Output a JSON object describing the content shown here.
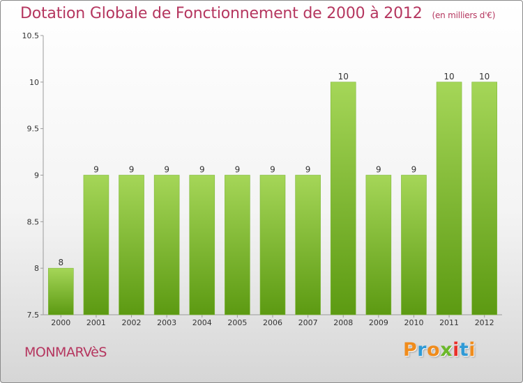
{
  "title": "Dotation Globale de Fonctionnement de 2000 à 2012",
  "unit": "(en milliers d'€)",
  "commune": "MONMARVèS",
  "logo": {
    "letters": [
      "P",
      "r",
      "o",
      "x",
      "i",
      "t",
      "i"
    ],
    "colors": [
      "#f08c1c",
      "#2f9ad6",
      "#f08c1c",
      "#6bb82a",
      "#e9302a",
      "#2f9ad6",
      "#f08c1c"
    ]
  },
  "colors": {
    "bar_top": "#a5d658",
    "bar_bottom": "#5c9a12",
    "title": "#b5365f"
  },
  "chart_data": {
    "type": "bar",
    "title": "Dotation Globale de Fonctionnement de 2000 à 2012",
    "xlabel": "",
    "ylabel": "",
    "categories": [
      "2000",
      "2001",
      "2002",
      "2003",
      "2004",
      "2005",
      "2006",
      "2007",
      "2008",
      "2009",
      "2010",
      "2011",
      "2012"
    ],
    "values": [
      8,
      9,
      9,
      9,
      9,
      9,
      9,
      9,
      10,
      9,
      9,
      10,
      10
    ],
    "data_labels": [
      "8",
      "9",
      "9",
      "9",
      "9",
      "9",
      "9",
      "9",
      "10",
      "9",
      "9",
      "10",
      "10"
    ],
    "ylim": [
      7.5,
      10.5
    ],
    "yticks": [
      7.5,
      8,
      8.5,
      9,
      9.5,
      10,
      10.5
    ],
    "ytick_labels": [
      "7.5",
      "8",
      "8.5",
      "9",
      "9.5",
      "10",
      "10.5"
    ],
    "grid": false,
    "legend": "none"
  }
}
